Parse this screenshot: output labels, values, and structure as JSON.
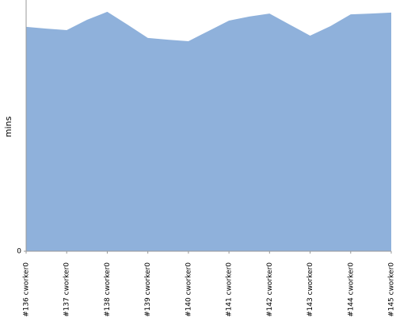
{
  "chart_data": {
    "type": "area",
    "y_label": "mins",
    "categories": [
      "#136 cworker0",
      null,
      "#137 cworker0",
      null,
      "#138 cworker0",
      null,
      "#139 cworker0",
      null,
      "#140 cworker0",
      null,
      "#141 cworker0",
      null,
      "#142 cworker0",
      null,
      "#143 cworker0",
      null,
      "#144 cworker0",
      null,
      "#145 cworker0"
    ],
    "values": [
      8.93,
      8.86,
      8.8,
      9.21,
      9.53,
      9.02,
      8.49,
      8.42,
      8.36,
      8.77,
      9.18,
      9.34,
      9.46,
      9.02,
      8.58,
      8.96,
      9.43,
      9.46,
      9.5
    ],
    "color": "#8fb1db",
    "ylim": [
      0,
      10
    ],
    "yticks": [
      0
    ]
  }
}
